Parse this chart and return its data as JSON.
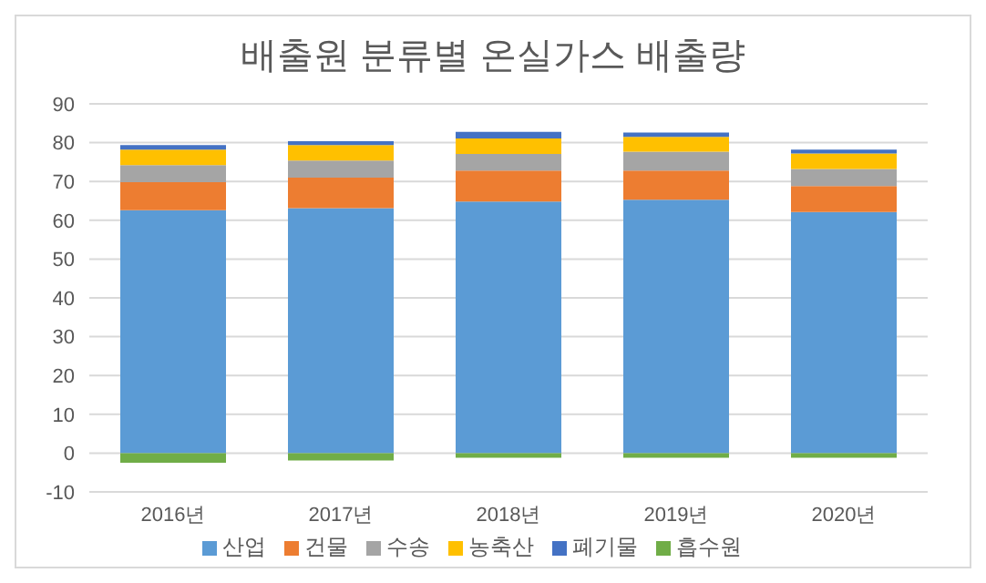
{
  "chart_data": {
    "type": "bar",
    "title": "배출원 분류별 온실가스 배출량",
    "categories": [
      "2016년",
      "2017년",
      "2018년",
      "2019년",
      "2020년"
    ],
    "stacked": true,
    "ylim": [
      -10,
      90
    ],
    "yticks": [
      -10,
      0,
      10,
      20,
      30,
      40,
      50,
      60,
      70,
      80,
      90
    ],
    "grid": "y",
    "legend": "bottom",
    "series": [
      {
        "name": "산업",
        "color": "#5b9bd5",
        "values": [
          62.6,
          63.1,
          64.8,
          65.3,
          62.1
        ]
      },
      {
        "name": "건물",
        "color": "#ed7d31",
        "values": [
          7.2,
          7.9,
          8.0,
          7.5,
          6.7
        ]
      },
      {
        "name": "수송",
        "color": "#a5a5a5",
        "values": [
          4.4,
          4.4,
          4.3,
          4.9,
          4.4
        ]
      },
      {
        "name": "농축산",
        "color": "#ffc000",
        "values": [
          4.0,
          4.0,
          4.0,
          3.8,
          4.0
        ]
      },
      {
        "name": "폐기물",
        "color": "#4472c4",
        "values": [
          1.2,
          1.0,
          1.7,
          1.1,
          1.0
        ]
      },
      {
        "name": "흡수원",
        "color": "#70ad47",
        "values": [
          -2.5,
          -1.9,
          -1.2,
          -1.2,
          -1.2
        ]
      }
    ]
  }
}
